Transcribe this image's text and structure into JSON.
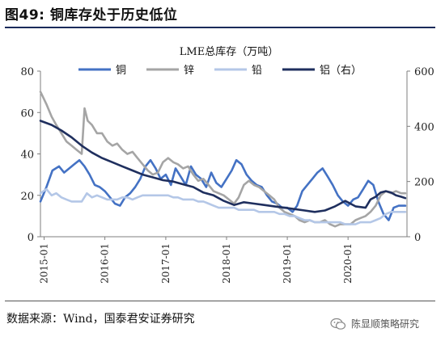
{
  "figure": {
    "title": "图49: 铜库存处于历史低位",
    "source": "数据来源：Wind，国泰君安证券研究",
    "watermark": "陈显顺策略研究"
  },
  "chart_data": {
    "type": "line",
    "title": "LME总库存（万吨）",
    "x_ticks": [
      "2015-01",
      "2016-01",
      "2017-01",
      "2018-01",
      "2019-01",
      "2020-01"
    ],
    "x_range": [
      "2014-12-10",
      "2020-12-20"
    ],
    "y_left": {
      "min": 0,
      "max": 80,
      "ticks": [
        0,
        20,
        40,
        60,
        80
      ]
    },
    "y_right": {
      "min": 0,
      "max": 600,
      "ticks": [
        0,
        200,
        400,
        600
      ]
    },
    "legend_position": "top",
    "grid": false,
    "series": [
      {
        "name": "铜",
        "axis": "left",
        "color": "#4472c4",
        "points": [
          [
            "2014-12-10",
            17
          ],
          [
            "2015-01-15",
            24
          ],
          [
            "2015-02-20",
            32
          ],
          [
            "2015-04-01",
            34
          ],
          [
            "2015-05-01",
            31
          ],
          [
            "2015-06-01",
            33
          ],
          [
            "2015-07-01",
            35
          ],
          [
            "2015-08-01",
            37
          ],
          [
            "2015-09-01",
            34
          ],
          [
            "2015-10-01",
            30
          ],
          [
            "2015-11-01",
            25
          ],
          [
            "2015-12-01",
            24
          ],
          [
            "2016-01-01",
            22
          ],
          [
            "2016-02-01",
            19
          ],
          [
            "2016-03-01",
            16
          ],
          [
            "2016-04-01",
            15
          ],
          [
            "2016-05-01",
            19
          ],
          [
            "2016-06-01",
            21
          ],
          [
            "2016-07-01",
            24
          ],
          [
            "2016-08-01",
            28
          ],
          [
            "2016-09-01",
            34
          ],
          [
            "2016-10-01",
            37
          ],
          [
            "2016-11-01",
            33
          ],
          [
            "2016-12-01",
            28
          ],
          [
            "2017-01-01",
            30
          ],
          [
            "2017-02-01",
            25
          ],
          [
            "2017-03-01",
            33
          ],
          [
            "2017-04-01",
            29
          ],
          [
            "2017-05-01",
            25
          ],
          [
            "2017-06-01",
            34
          ],
          [
            "2017-07-01",
            30
          ],
          [
            "2017-08-01",
            28
          ],
          [
            "2017-09-01",
            24
          ],
          [
            "2017-10-01",
            31
          ],
          [
            "2017-11-01",
            26
          ],
          [
            "2017-12-01",
            24
          ],
          [
            "2018-01-01",
            28
          ],
          [
            "2018-02-01",
            32
          ],
          [
            "2018-03-01",
            37
          ],
          [
            "2018-04-01",
            35
          ],
          [
            "2018-05-01",
            30
          ],
          [
            "2018-06-01",
            27
          ],
          [
            "2018-07-01",
            25
          ],
          [
            "2018-08-01",
            24
          ],
          [
            "2018-09-01",
            20
          ],
          [
            "2018-10-01",
            17
          ],
          [
            "2018-11-01",
            16
          ],
          [
            "2018-12-01",
            14
          ],
          [
            "2019-01-01",
            14
          ],
          [
            "2019-02-01",
            12
          ],
          [
            "2019-03-01",
            15
          ],
          [
            "2019-04-01",
            22
          ],
          [
            "2019-05-01",
            25
          ],
          [
            "2019-06-01",
            28
          ],
          [
            "2019-07-01",
            31
          ],
          [
            "2019-08-01",
            33
          ],
          [
            "2019-09-01",
            29
          ],
          [
            "2019-10-01",
            25
          ],
          [
            "2019-11-01",
            20
          ],
          [
            "2019-12-01",
            17
          ],
          [
            "2020-01-01",
            15
          ],
          [
            "2020-02-01",
            18
          ],
          [
            "2020-03-01",
            19
          ],
          [
            "2020-04-01",
            23
          ],
          [
            "2020-05-01",
            27
          ],
          [
            "2020-06-01",
            25
          ],
          [
            "2020-07-01",
            17
          ],
          [
            "2020-08-01",
            11
          ],
          [
            "2020-09-01",
            8
          ],
          [
            "2020-10-01",
            14
          ],
          [
            "2020-11-01",
            15
          ],
          [
            "2020-12-10",
            15
          ]
        ]
      },
      {
        "name": "锌",
        "axis": "left",
        "color": "#a5a5a5",
        "points": [
          [
            "2014-12-10",
            70
          ],
          [
            "2015-01-15",
            64
          ],
          [
            "2015-02-15",
            58
          ],
          [
            "2015-03-15",
            54
          ],
          [
            "2015-04-15",
            50
          ],
          [
            "2015-05-15",
            46
          ],
          [
            "2015-06-15",
            44
          ],
          [
            "2015-07-15",
            42
          ],
          [
            "2015-08-15",
            40
          ],
          [
            "2015-09-01",
            62
          ],
          [
            "2015-09-20",
            56
          ],
          [
            "2015-10-15",
            54
          ],
          [
            "2015-11-15",
            50
          ],
          [
            "2015-12-15",
            50
          ],
          [
            "2016-01-15",
            46
          ],
          [
            "2016-02-15",
            44
          ],
          [
            "2016-03-15",
            45
          ],
          [
            "2016-04-15",
            42
          ],
          [
            "2016-05-15",
            40
          ],
          [
            "2016-06-15",
            41
          ],
          [
            "2016-07-15",
            38
          ],
          [
            "2016-08-15",
            35
          ],
          [
            "2016-09-15",
            32
          ],
          [
            "2016-10-15",
            30
          ],
          [
            "2016-11-15",
            31
          ],
          [
            "2016-12-15",
            36
          ],
          [
            "2017-01-15",
            38
          ],
          [
            "2017-02-15",
            36
          ],
          [
            "2017-03-15",
            35
          ],
          [
            "2017-04-15",
            33
          ],
          [
            "2017-05-15",
            34
          ],
          [
            "2017-06-15",
            30
          ],
          [
            "2017-07-15",
            27
          ],
          [
            "2017-08-15",
            28
          ],
          [
            "2017-09-15",
            25
          ],
          [
            "2017-10-15",
            22
          ],
          [
            "2017-11-15",
            21
          ],
          [
            "2017-12-15",
            20
          ],
          [
            "2018-01-15",
            18
          ],
          [
            "2018-02-15",
            16
          ],
          [
            "2018-03-15",
            19
          ],
          [
            "2018-04-15",
            25
          ],
          [
            "2018-05-15",
            27
          ],
          [
            "2018-06-15",
            25
          ],
          [
            "2018-07-15",
            24
          ],
          [
            "2018-08-15",
            22
          ],
          [
            "2018-09-15",
            20
          ],
          [
            "2018-10-15",
            18
          ],
          [
            "2018-11-15",
            14
          ],
          [
            "2018-12-15",
            12
          ],
          [
            "2019-01-15",
            11
          ],
          [
            "2019-02-15",
            10
          ],
          [
            "2019-03-15",
            8
          ],
          [
            "2019-04-15",
            7
          ],
          [
            "2019-05-15",
            8
          ],
          [
            "2019-06-15",
            7
          ],
          [
            "2019-07-15",
            7
          ],
          [
            "2019-08-15",
            8
          ],
          [
            "2019-09-15",
            6
          ],
          [
            "2019-10-15",
            5
          ],
          [
            "2019-11-15",
            6
          ],
          [
            "2019-12-15",
            6
          ],
          [
            "2020-01-15",
            6
          ],
          [
            "2020-02-15",
            8
          ],
          [
            "2020-03-15",
            9
          ],
          [
            "2020-04-15",
            10
          ],
          [
            "2020-05-15",
            12
          ],
          [
            "2020-06-15",
            15
          ],
          [
            "2020-07-15",
            20
          ],
          [
            "2020-08-15",
            22
          ],
          [
            "2020-09-15",
            21
          ],
          [
            "2020-10-15",
            22
          ],
          [
            "2020-11-15",
            21
          ],
          [
            "2020-12-10",
            21
          ]
        ]
      },
      {
        "name": "铅",
        "axis": "left",
        "color": "#b4c7e7",
        "points": [
          [
            "2014-12-10",
            21
          ],
          [
            "2015-01-15",
            23
          ],
          [
            "2015-02-15",
            20
          ],
          [
            "2015-03-15",
            21
          ],
          [
            "2015-04-15",
            19
          ],
          [
            "2015-05-15",
            18
          ],
          [
            "2015-06-15",
            17
          ],
          [
            "2015-07-15",
            17
          ],
          [
            "2015-08-15",
            17
          ],
          [
            "2015-09-15",
            21
          ],
          [
            "2015-10-15",
            19
          ],
          [
            "2015-11-15",
            20
          ],
          [
            "2015-12-15",
            19
          ],
          [
            "2016-01-15",
            18
          ],
          [
            "2016-02-15",
            18
          ],
          [
            "2016-03-15",
            18
          ],
          [
            "2016-04-15",
            19
          ],
          [
            "2016-05-15",
            19
          ],
          [
            "2016-06-15",
            18
          ],
          [
            "2016-07-15",
            19
          ],
          [
            "2016-08-15",
            20
          ],
          [
            "2016-09-15",
            20
          ],
          [
            "2016-10-15",
            20
          ],
          [
            "2016-11-15",
            20
          ],
          [
            "2016-12-15",
            20
          ],
          [
            "2017-01-15",
            20
          ],
          [
            "2017-02-15",
            19
          ],
          [
            "2017-03-15",
            19
          ],
          [
            "2017-04-15",
            18
          ],
          [
            "2017-05-15",
            18
          ],
          [
            "2017-06-15",
            18
          ],
          [
            "2017-07-15",
            17
          ],
          [
            "2017-08-15",
            17
          ],
          [
            "2017-09-15",
            16
          ],
          [
            "2017-10-15",
            15
          ],
          [
            "2017-11-15",
            14
          ],
          [
            "2017-12-15",
            14
          ],
          [
            "2018-01-15",
            14
          ],
          [
            "2018-02-15",
            14
          ],
          [
            "2018-03-15",
            13
          ],
          [
            "2018-04-15",
            13
          ],
          [
            "2018-05-15",
            13
          ],
          [
            "2018-06-15",
            13
          ],
          [
            "2018-07-15",
            12
          ],
          [
            "2018-08-15",
            12
          ],
          [
            "2018-09-15",
            12
          ],
          [
            "2018-10-15",
            12
          ],
          [
            "2018-11-15",
            11
          ],
          [
            "2018-12-15",
            11
          ],
          [
            "2019-01-15",
            10
          ],
          [
            "2019-02-15",
            10
          ],
          [
            "2019-03-15",
            9
          ],
          [
            "2019-04-15",
            8
          ],
          [
            "2019-05-15",
            8
          ],
          [
            "2019-06-15",
            7
          ],
          [
            "2019-07-15",
            7
          ],
          [
            "2019-08-15",
            7
          ],
          [
            "2019-09-15",
            7
          ],
          [
            "2019-10-15",
            7
          ],
          [
            "2019-11-15",
            7
          ],
          [
            "2019-12-15",
            6
          ],
          [
            "2020-01-15",
            6
          ],
          [
            "2020-02-15",
            6
          ],
          [
            "2020-03-15",
            7
          ],
          [
            "2020-04-15",
            7
          ],
          [
            "2020-05-15",
            7
          ],
          [
            "2020-06-15",
            8
          ],
          [
            "2020-07-15",
            9
          ],
          [
            "2020-08-15",
            11
          ],
          [
            "2020-09-15",
            12
          ],
          [
            "2020-10-15",
            12
          ],
          [
            "2020-11-15",
            12
          ],
          [
            "2020-12-10",
            12
          ]
        ]
      },
      {
        "name": "铝（右）",
        "axis": "right",
        "color": "#1f2f5e",
        "points": [
          [
            "2014-12-10",
            420
          ],
          [
            "2015-02-15",
            405
          ],
          [
            "2015-04-15",
            385
          ],
          [
            "2015-06-15",
            360
          ],
          [
            "2015-08-15",
            330
          ],
          [
            "2015-10-15",
            305
          ],
          [
            "2015-12-15",
            285
          ],
          [
            "2016-02-15",
            270
          ],
          [
            "2016-04-15",
            255
          ],
          [
            "2016-06-15",
            240
          ],
          [
            "2016-08-15",
            225
          ],
          [
            "2016-10-15",
            215
          ],
          [
            "2016-12-15",
            205
          ],
          [
            "2017-02-15",
            200
          ],
          [
            "2017-04-15",
            190
          ],
          [
            "2017-06-15",
            180
          ],
          [
            "2017-08-15",
            160
          ],
          [
            "2017-10-15",
            150
          ],
          [
            "2017-12-15",
            130
          ],
          [
            "2018-02-15",
            115
          ],
          [
            "2018-04-15",
            125
          ],
          [
            "2018-06-15",
            120
          ],
          [
            "2018-08-15",
            115
          ],
          [
            "2018-10-15",
            110
          ],
          [
            "2018-12-15",
            105
          ],
          [
            "2019-02-15",
            100
          ],
          [
            "2019-04-15",
            95
          ],
          [
            "2019-06-15",
            90
          ],
          [
            "2019-08-15",
            95
          ],
          [
            "2019-10-15",
            110
          ],
          [
            "2019-12-15",
            130
          ],
          [
            "2020-02-15",
            110
          ],
          [
            "2020-04-15",
            105
          ],
          [
            "2020-05-15",
            135
          ],
          [
            "2020-06-15",
            145
          ],
          [
            "2020-07-15",
            160
          ],
          [
            "2020-08-15",
            165
          ],
          [
            "2020-09-15",
            160
          ],
          [
            "2020-10-15",
            150
          ],
          [
            "2020-11-15",
            145
          ],
          [
            "2020-12-10",
            140
          ]
        ]
      }
    ]
  }
}
